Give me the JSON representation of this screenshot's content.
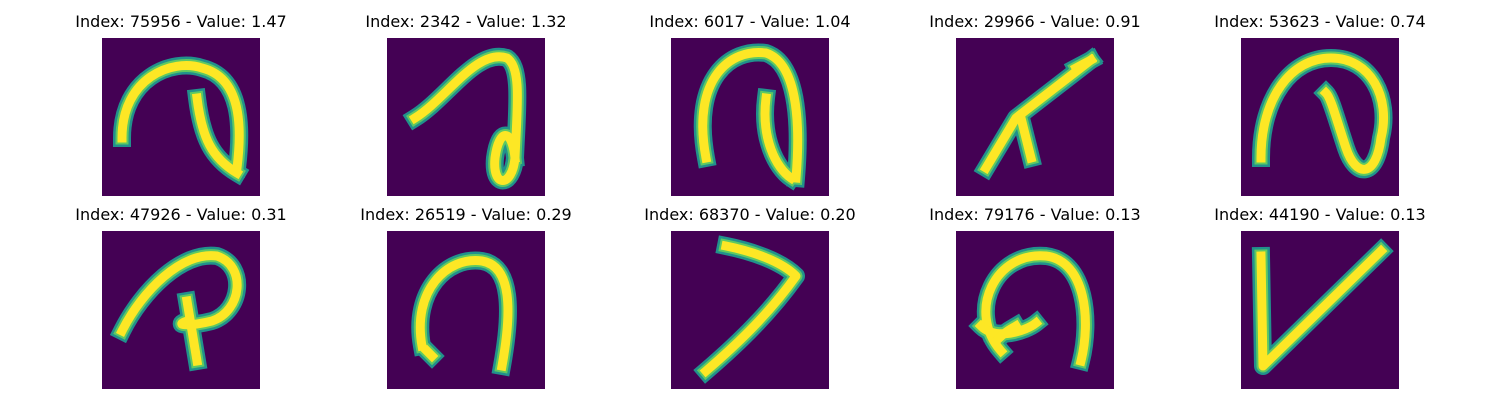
{
  "figure": {
    "panels": [
      {
        "title": "Index: 75956 - Value: 1.47",
        "image_description": "handwritten glyph resembling a hooked curve with inner loop",
        "glyph": "hook"
      },
      {
        "title": "Index: 2342 - Value: 1.32",
        "image_description": "thin stroke curve with loop at bottom",
        "glyph": "thin-hook"
      },
      {
        "title": "Index: 6017 - Value: 1.04",
        "image_description": "thick arch with inner downward stroke",
        "glyph": "arch-inner"
      },
      {
        "title": "Index: 29966 - Value: 0.91",
        "image_description": "thick diagonal stroke with two downward legs",
        "glyph": "diagonal-legs"
      },
      {
        "title": "Index: 53623 - Value: 0.74",
        "image_description": "loop curve with inner stroke",
        "glyph": "loop"
      },
      {
        "title": "Index: 47926 - Value: 0.31",
        "image_description": "letter P-like stroke",
        "glyph": "p-shape"
      },
      {
        "title": "Index: 26519 - Value: 0.29",
        "image_description": "thick upside-down U shape",
        "glyph": "n-shape"
      },
      {
        "title": "Index: 68370 - Value: 0.20",
        "image_description": "seven-like diagonal stroke",
        "glyph": "seven"
      },
      {
        "title": "Index: 79176 - Value: 0.13",
        "image_description": "curled arch with inner hook",
        "glyph": "curl"
      },
      {
        "title": "Index: 44190 - Value: 0.13",
        "image_description": "V-like check shape",
        "glyph": "v-shape"
      }
    ],
    "colors": {
      "background": "#440154",
      "stroke_core": "#fde725",
      "stroke_edge": "#21918c",
      "stroke_mid": "#5ec962"
    }
  }
}
